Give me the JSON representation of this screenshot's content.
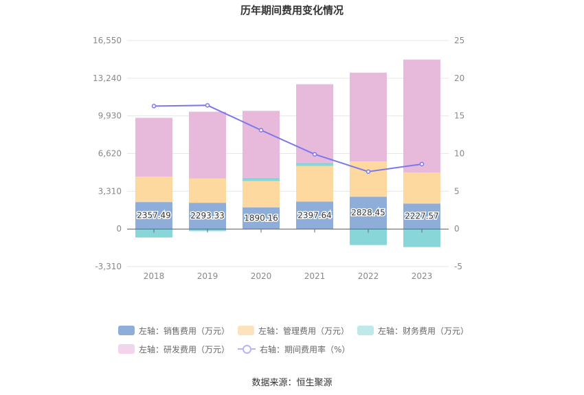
{
  "chart_data": {
    "type": "bar",
    "title": "历年期间费用变化情况",
    "categories": [
      "2018",
      "2019",
      "2020",
      "2021",
      "2022",
      "2023"
    ],
    "left_axis": {
      "ticks": [
        "16,550",
        "13,240",
        "9,930",
        "6,620",
        "3,310",
        "0",
        "-3,310"
      ],
      "range": [
        -3310,
        16550
      ]
    },
    "right_axis": {
      "ticks": [
        "25",
        "20",
        "15",
        "10",
        "5",
        "0",
        "-5"
      ],
      "range": [
        -5,
        25
      ]
    },
    "stacked": true,
    "series": [
      {
        "name": "左轴：销售费用（万元）",
        "axis": "left",
        "type": "bar",
        "color": "#8eadd9",
        "values": [
          2357.49,
          2293.33,
          1890.16,
          2397.64,
          2828.45,
          2227.57
        ]
      },
      {
        "name": "左轴：管理费用（万元）",
        "axis": "left",
        "type": "bar",
        "color": "#fdd9a0",
        "values": [
          2230,
          2130,
          2310,
          3130,
          3100,
          2720
        ]
      },
      {
        "name": "左轴：财务费用（万元）",
        "axis": "left",
        "type": "bar",
        "color": "#88d6d8",
        "values": [
          -760,
          -200,
          290,
          290,
          -1420,
          -1600
        ]
      },
      {
        "name": "左轴：研发费用（万元）",
        "axis": "left",
        "type": "bar",
        "color": "#e7b9da",
        "values": [
          5170,
          5870,
          5880,
          6890,
          7800,
          9930
        ]
      },
      {
        "name": "右轴：期间费用率（%）",
        "axis": "right",
        "type": "line",
        "color": "#7b78ec",
        "values": [
          16.3,
          16.4,
          13.1,
          9.9,
          7.6,
          8.6
        ]
      }
    ],
    "data_labels": [
      "2357.49",
      "2293.33",
      "1890.16",
      "2397.64",
      "2828.45",
      "2227.57"
    ],
    "grid": true,
    "legend_position": "bottom"
  },
  "legend": [
    {
      "label": "左轴：销售费用（万元）",
      "color": "#8eadd9",
      "kind": "bar"
    },
    {
      "label": "左轴：管理费用（万元）",
      "color": "#fde3bd",
      "kind": "bar"
    },
    {
      "label": "左轴：财务费用（万元）",
      "color": "#bfe8e9",
      "kind": "bar"
    },
    {
      "label": "左轴：研发费用（万元）",
      "color": "#f2d5ec",
      "kind": "bar"
    },
    {
      "label": "右轴：期间费用率（%）",
      "color": "#b6b3f6",
      "kind": "line"
    }
  ],
  "source": "数据来源：恒生聚源"
}
